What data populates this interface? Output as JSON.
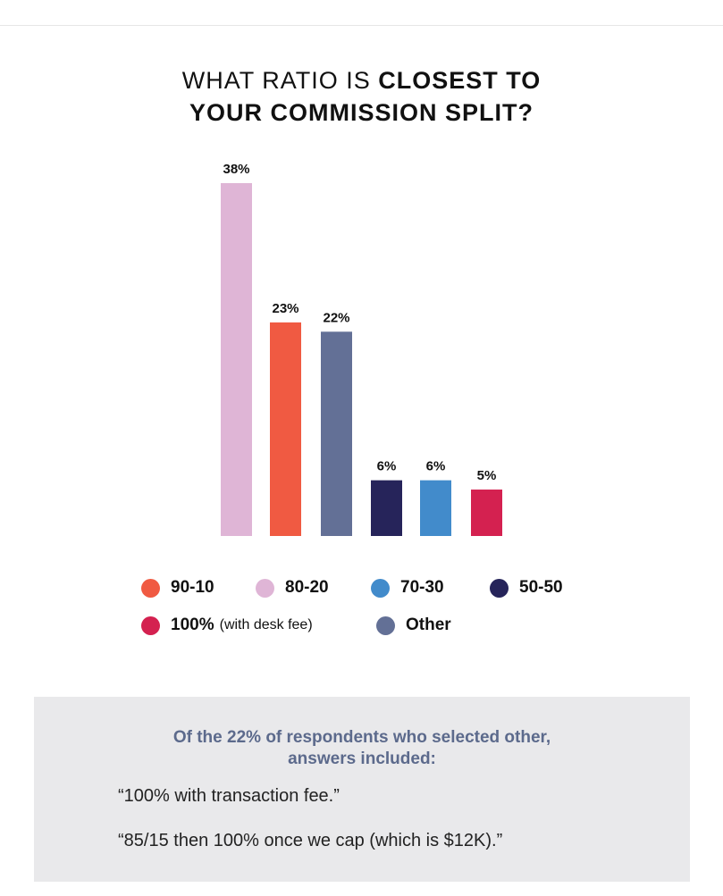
{
  "title": {
    "line1_light": "WHAT RATIO IS",
    "line1_bold": "CLOSEST TO",
    "line2": "YOUR COMMISSION SPLIT?"
  },
  "chart_data": {
    "type": "bar",
    "title": "WHAT RATIO IS CLOSEST TO YOUR COMMISSION SPLIT?",
    "categories": [
      "80-20",
      "90-10",
      "Other",
      "50-50",
      "70-30",
      "100% (with desk fee)"
    ],
    "values": [
      38,
      23,
      22,
      6,
      6,
      5
    ],
    "labels": [
      "38%",
      "23%",
      "22%",
      "6%",
      "6%",
      "5%"
    ],
    "colors": [
      "#dfb5d6",
      "#f05a42",
      "#637096",
      "#26245a",
      "#428bcb",
      "#d42150"
    ],
    "ylim": [
      0,
      38
    ],
    "grid": false,
    "legend_placement": "bottom"
  },
  "legend": [
    {
      "label": "90-10",
      "sub": "",
      "color": "#f05a42"
    },
    {
      "label": "80-20",
      "sub": "",
      "color": "#dfb5d6"
    },
    {
      "label": "70-30",
      "sub": "",
      "color": "#428bcb"
    },
    {
      "label": "50-50",
      "sub": "",
      "color": "#26245a"
    },
    {
      "label": "100%",
      "sub": "(with desk fee)",
      "color": "#d42150"
    },
    {
      "label": "Other",
      "sub": "",
      "color": "#637096"
    }
  ],
  "note": {
    "heading_line1": "Of the 22% of respondents who selected other,",
    "heading_line2": "answers included:",
    "quotes": [
      "“100% with transaction fee.”",
      "“85/15 then 100% once we cap (which is $12K).”"
    ]
  }
}
